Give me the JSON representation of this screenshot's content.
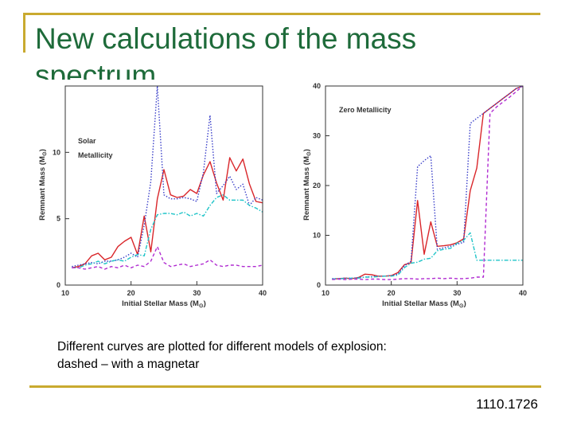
{
  "slide": {
    "title": "New calculations of the mass spectrum",
    "caption_line1": "Different curves are plotted for different models of explosion:",
    "caption_line2": "dashed – with a magnetar",
    "reference": "1110.1726"
  },
  "chart_data": [
    {
      "type": "line",
      "ylabel_main": "Remnant Mass (M",
      "ylabel_sub": "⊙",
      "ylabel_close": ")",
      "xlabel_main": "Initial Stellar Mass (M",
      "xlabel_sub": "⊙",
      "xlabel_close": ")",
      "annotation_line1": "Solar",
      "annotation_line2": "Metallicity",
      "xlim": [
        10,
        40
      ],
      "ylim": [
        0,
        15
      ],
      "xticks": [
        "10",
        "20",
        "30",
        "40"
      ],
      "yticks": [
        "0",
        "5",
        "10"
      ],
      "series": [
        {
          "name": "red solid",
          "color": "#d9262a",
          "dash": "",
          "x": [
            11,
            12,
            13,
            14,
            15,
            16,
            17,
            18,
            19,
            20,
            21,
            22,
            23,
            24,
            25,
            26,
            27,
            28,
            29,
            30,
            31,
            32,
            33,
            34,
            35,
            36,
            37,
            38,
            39,
            40
          ],
          "y": [
            1.3,
            1.4,
            1.6,
            2.2,
            2.4,
            1.9,
            2.1,
            2.9,
            3.3,
            3.6,
            2.3,
            5.2,
            2.5,
            6.5,
            8.7,
            6.8,
            6.6,
            6.7,
            7.2,
            6.9,
            8.3,
            9.3,
            7.7,
            6.4,
            9.6,
            8.6,
            9.5,
            7.6,
            6.3,
            6.2
          ]
        },
        {
          "name": "blue dotted",
          "color": "#3a3fc9",
          "dash": "1.5 2",
          "x": [
            11,
            12,
            13,
            14,
            15,
            16,
            17,
            18,
            19,
            20,
            21,
            22,
            23,
            24,
            25,
            26,
            27,
            28,
            29,
            30,
            31,
            32,
            33,
            34,
            35,
            36,
            37,
            38,
            39,
            40
          ],
          "y": [
            1.4,
            1.5,
            1.6,
            1.7,
            1.6,
            1.8,
            1.8,
            1.9,
            2.1,
            2.4,
            2.1,
            4.5,
            7.8,
            15.5,
            6.8,
            6.5,
            6.5,
            6.6,
            6.5,
            6.3,
            8.5,
            12.8,
            6.9,
            7.5,
            8.2,
            7.2,
            7.6,
            6.0,
            6.6,
            6.4
          ]
        },
        {
          "name": "cyan dash-dot",
          "color": "#1fc4c8",
          "dash": "5 2 1.5 2",
          "x": [
            11,
            12,
            13,
            14,
            15,
            16,
            17,
            18,
            19,
            20,
            21,
            22,
            23,
            24,
            25,
            26,
            27,
            28,
            29,
            30,
            31,
            32,
            33,
            34,
            35,
            36,
            37,
            38,
            39,
            40
          ],
          "y": [
            1.3,
            1.3,
            1.5,
            1.6,
            1.8,
            1.6,
            1.8,
            1.9,
            1.8,
            2.1,
            2.3,
            2.2,
            4.2,
            5.3,
            5.4,
            5.4,
            5.3,
            5.5,
            5.2,
            5.4,
            5.2,
            6.0,
            6.6,
            6.8,
            6.4,
            6.4,
            6.4,
            6.0,
            5.8,
            5.5
          ]
        },
        {
          "name": "magenta dashed",
          "color": "#b02bd1",
          "dash": "4 3",
          "x": [
            11,
            12,
            13,
            14,
            15,
            16,
            17,
            18,
            19,
            20,
            21,
            22,
            23,
            24,
            25,
            26,
            27,
            28,
            29,
            30,
            31,
            32,
            33,
            34,
            35,
            36,
            37,
            38,
            39,
            40
          ],
          "y": [
            1.3,
            1.3,
            1.2,
            1.3,
            1.4,
            1.2,
            1.4,
            1.3,
            1.5,
            1.3,
            1.5,
            1.4,
            1.8,
            2.9,
            1.7,
            1.4,
            1.5,
            1.6,
            1.4,
            1.5,
            1.6,
            1.9,
            1.5,
            1.4,
            1.5,
            1.5,
            1.4,
            1.4,
            1.4,
            1.5
          ]
        }
      ]
    },
    {
      "type": "line",
      "ylabel_main": "Remnant Mass (M",
      "ylabel_sub": "⊙",
      "ylabel_close": ")",
      "xlabel_main": "Initial Stellar Mass (M",
      "xlabel_sub": "⊙",
      "xlabel_close": ")",
      "annotation_line1": "Zero Metallicity",
      "xlim": [
        10,
        40
      ],
      "ylim": [
        0,
        40
      ],
      "xticks": [
        "10",
        "20",
        "30",
        "40"
      ],
      "yticks": [
        "0",
        "10",
        "20",
        "30",
        "40"
      ],
      "series": [
        {
          "name": "red solid",
          "color": "#d9262a",
          "dash": "",
          "x": [
            11,
            12,
            13,
            14,
            15,
            16,
            17,
            18,
            19,
            20,
            21,
            22,
            23,
            24,
            25,
            26,
            27,
            28,
            29,
            30,
            31,
            32,
            33,
            34,
            35,
            36,
            37,
            38,
            39,
            40
          ],
          "y": [
            1.2,
            1.3,
            1.4,
            1.3,
            1.5,
            2.2,
            2.1,
            1.8,
            1.8,
            1.9,
            2.5,
            4.1,
            4.5,
            17.0,
            6.2,
            12.7,
            7.8,
            7.9,
            8.1,
            8.5,
            9.3,
            19.0,
            23.5,
            34.5,
            35.5,
            36.5,
            37.5,
            38.5,
            39.5,
            40
          ]
        },
        {
          "name": "blue dotted",
          "color": "#3a3fc9",
          "dash": "1.5 2",
          "x": [
            11,
            12,
            13,
            14,
            15,
            16,
            17,
            18,
            19,
            20,
            21,
            22,
            23,
            24,
            25,
            26,
            27,
            28,
            29,
            30,
            31,
            32,
            33,
            34,
            35,
            36,
            37,
            38,
            39,
            40
          ],
          "y": [
            1.3,
            1.3,
            1.4,
            1.4,
            1.5,
            1.6,
            1.7,
            1.8,
            1.8,
            1.9,
            2.2,
            3.9,
            4.8,
            23.8,
            25.0,
            26.0,
            7.2,
            7.5,
            7.8,
            8.2,
            8.6,
            32.5,
            33.5,
            34.5,
            35.5,
            36.5,
            37.5,
            38.5,
            39.5,
            40
          ]
        },
        {
          "name": "cyan dash-dot",
          "color": "#1fc4c8",
          "dash": "5 2 1.5 2",
          "x": [
            11,
            12,
            13,
            14,
            15,
            16,
            17,
            18,
            19,
            20,
            21,
            22,
            23,
            24,
            25,
            26,
            27,
            28,
            29,
            30,
            31,
            32,
            33,
            34,
            35,
            36,
            37,
            38,
            39,
            40
          ],
          "y": [
            1.2,
            1.3,
            1.3,
            1.4,
            1.4,
            1.6,
            1.6,
            1.7,
            1.8,
            1.8,
            2.0,
            3.5,
            4.4,
            4.6,
            5.2,
            5.4,
            6.9,
            7.2,
            7.4,
            8.4,
            9.0,
            10.5,
            5.0,
            5.0,
            5.0,
            5.0,
            5.0,
            5.0,
            5.0,
            5.0
          ]
        },
        {
          "name": "magenta dashed",
          "color": "#b02bd1",
          "dash": "4 3",
          "x": [
            11,
            12,
            13,
            14,
            15,
            16,
            17,
            18,
            19,
            20,
            21,
            22,
            23,
            24,
            25,
            26,
            27,
            28,
            29,
            30,
            31,
            32,
            33,
            34,
            35,
            36,
            37,
            38,
            39,
            40
          ],
          "y": [
            1.1,
            1.2,
            1.1,
            1.2,
            1.2,
            1.1,
            1.2,
            1.2,
            1.1,
            1.1,
            1.2,
            1.3,
            1.3,
            1.2,
            1.3,
            1.3,
            1.4,
            1.3,
            1.4,
            1.3,
            1.3,
            1.4,
            1.6,
            1.6,
            34.5,
            35.8,
            36.8,
            37.8,
            38.9,
            40
          ]
        }
      ]
    }
  ]
}
